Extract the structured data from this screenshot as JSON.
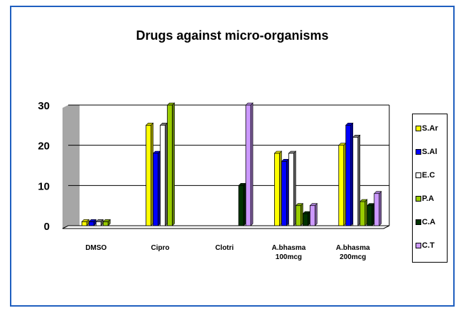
{
  "chart_data": {
    "type": "bar",
    "title": "Drugs against micro-organisms",
    "xlabel": "",
    "ylabel": "",
    "ylim": [
      0,
      30
    ],
    "yticks": [
      0,
      10,
      20,
      30
    ],
    "grid": true,
    "legend_placement": "right",
    "categories": [
      [
        "DMSO"
      ],
      [
        "Cipro"
      ],
      [
        "Clotri"
      ],
      [
        "A.bhasma",
        "100mcg"
      ],
      [
        "A.bhasma",
        "200mcg"
      ]
    ],
    "series": [
      {
        "name": "S.Ar",
        "color": "#ffff00",
        "values": [
          1,
          25,
          0,
          18,
          20
        ]
      },
      {
        "name": "S.Al",
        "color": "#0000ff",
        "values": [
          1,
          18,
          0,
          16,
          25
        ]
      },
      {
        "name": "E.C",
        "color": "#ffffff",
        "values": [
          1,
          25,
          0,
          18,
          22
        ]
      },
      {
        "name": "P.A",
        "color": "#99cc00",
        "values": [
          1,
          30,
          0,
          5,
          6
        ]
      },
      {
        "name": "C.A",
        "color": "#003300",
        "values": [
          0,
          0,
          10,
          3,
          5
        ]
      },
      {
        "name": "C.T",
        "color": "#cc99ff",
        "values": [
          0,
          0,
          30,
          5,
          8
        ]
      }
    ]
  }
}
